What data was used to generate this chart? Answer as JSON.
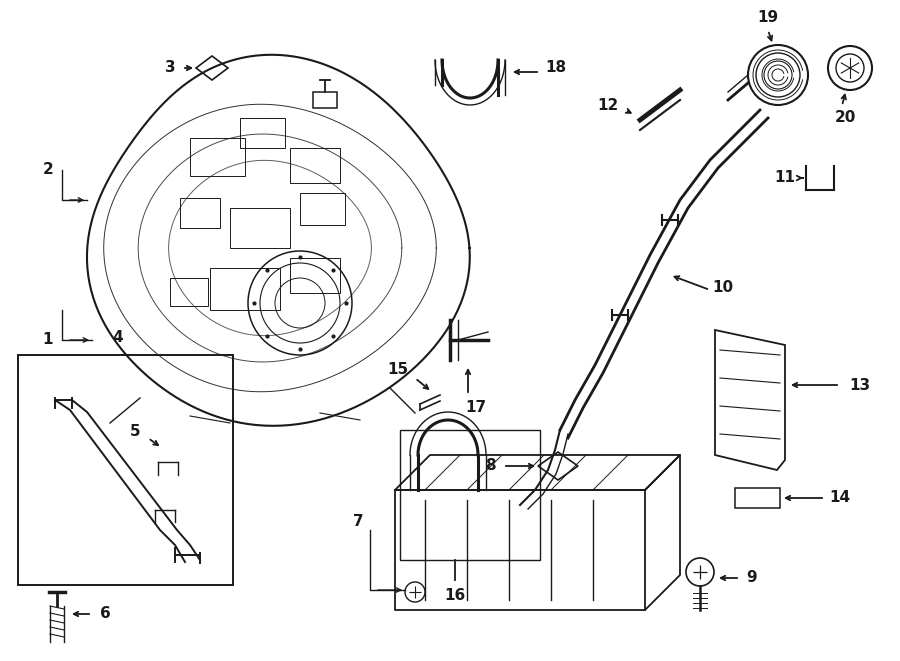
{
  "bg_color": "#ffffff",
  "line_color": "#1a1a1a",
  "fig_width": 9.0,
  "fig_height": 6.61,
  "dpi": 100,
  "lw_main": 1.3,
  "lw_thin": 0.8
}
